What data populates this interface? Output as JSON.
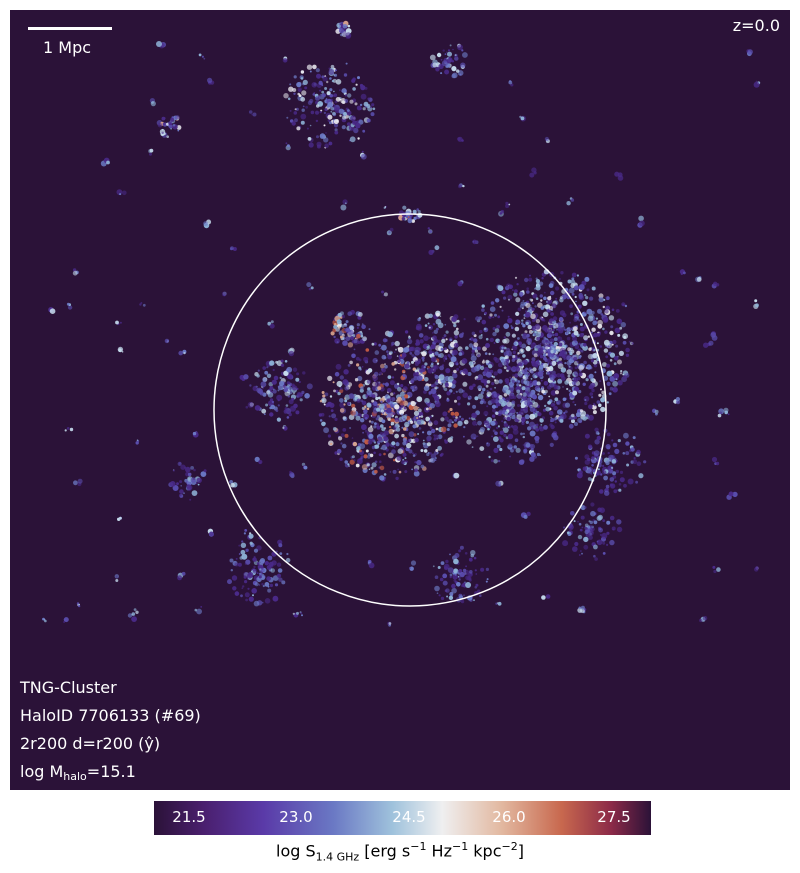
{
  "image": {
    "description_free": true,
    "background_color": "#2b1238",
    "circle_color": "#ffffff"
  },
  "scale_bar": {
    "label": "1 Mpc"
  },
  "redshift": "z=0.0",
  "info": {
    "simulation": "TNG-Cluster",
    "halo": "HaloID 7706133 (#69)",
    "projection": "2r200 d=r200 (ŷ)",
    "mass_prefix": "log M",
    "mass_sub": "halo",
    "mass_value": "=15.1"
  },
  "colorbar": {
    "ticks": [
      "21.5",
      "23.0",
      "24.5",
      "26.0",
      "27.5"
    ],
    "label_prefix": "log S",
    "label_sub": "1.4 GHz",
    "label_units_1": " [erg s",
    "label_exp_1": "−1",
    "label_units_2": " Hz",
    "label_exp_2": "−1",
    "label_units_3": " kpc",
    "label_exp_3": "−2",
    "label_units_4": "]",
    "tick_colors": [
      "#ffffff",
      "#ffffff",
      "#ffffff",
      "#ffffff",
      "#ffffff"
    ]
  }
}
